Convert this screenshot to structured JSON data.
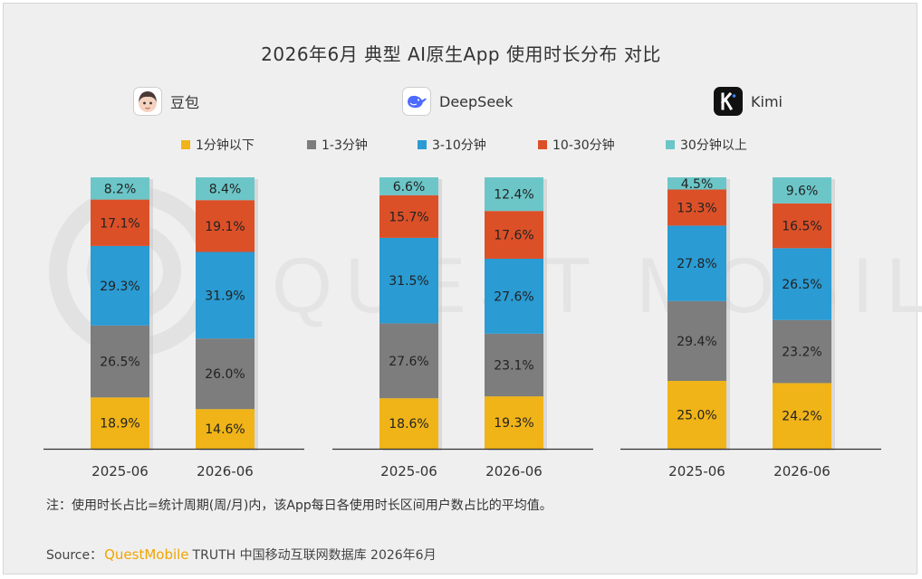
{
  "title": "2026年6月 典型 AI原生App 使用时长分布 对比",
  "watermark": "QUEST MOBILE",
  "apps": [
    {
      "name": "豆包",
      "icon": "doubao-avatar-icon"
    },
    {
      "name": "DeepSeek",
      "icon": "deepseek-whale-icon"
    },
    {
      "name": "Kimi",
      "icon": "kimi-k-icon"
    }
  ],
  "legend": [
    {
      "label": "1分钟以下",
      "color": "#f0b418"
    },
    {
      "label": "1-3分钟",
      "color": "#7d7d7d"
    },
    {
      "label": "3-10分钟",
      "color": "#2a9bd3"
    },
    {
      "label": "10-30分钟",
      "color": "#dc5028"
    },
    {
      "label": "30分钟以上",
      "color": "#6cc6c8"
    }
  ],
  "chart_data": {
    "type": "bar",
    "stacked": true,
    "percent": true,
    "categories": [
      "2025-06",
      "2026-06"
    ],
    "series_names": [
      "1分钟以下",
      "1-3分钟",
      "3-10分钟",
      "10-30分钟",
      "30分钟以上"
    ],
    "groups": [
      {
        "app": "豆包",
        "values": [
          [
            18.9,
            26.5,
            29.3,
            17.1,
            8.2
          ],
          [
            14.6,
            26.0,
            31.9,
            19.1,
            8.4
          ]
        ]
      },
      {
        "app": "DeepSeek",
        "values": [
          [
            18.6,
            27.6,
            31.5,
            15.7,
            6.6
          ],
          [
            19.3,
            23.1,
            27.6,
            17.6,
            12.4
          ]
        ]
      },
      {
        "app": "Kimi",
        "values": [
          [
            25.0,
            29.4,
            27.8,
            13.3,
            4.5
          ],
          [
            24.2,
            23.2,
            26.5,
            16.5,
            9.6
          ]
        ]
      }
    ]
  },
  "note": "注：使用时长占比=统计周期(周/月)内，该App每日各使用时长区间用户数占比的平均值。",
  "source": {
    "prefix": "Source：",
    "brand": "QuestMobile",
    "text": "TRUTH 中国移动互联网数据库 2026年6月"
  }
}
